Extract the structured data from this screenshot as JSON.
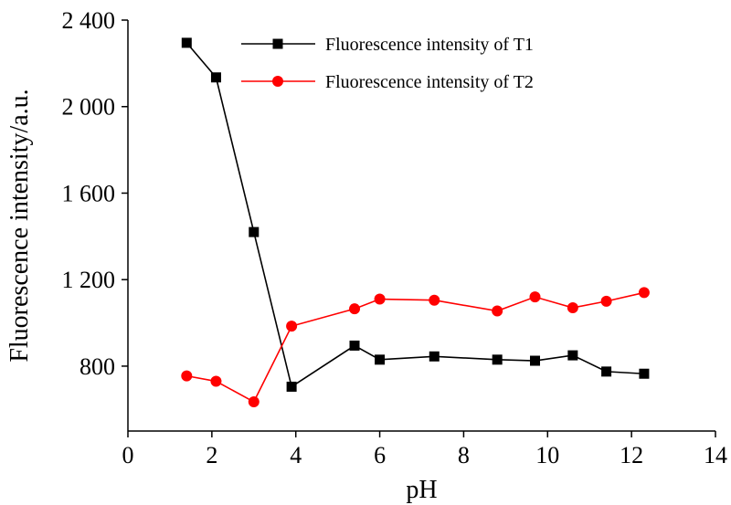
{
  "chart_data": {
    "type": "line",
    "xlabel": "pH",
    "ylabel": "Fluorescence intensity/a.u.",
    "xlim": [
      0,
      14
    ],
    "ylim": [
      500,
      2400
    ],
    "xticks": [
      0,
      2,
      4,
      6,
      8,
      10,
      12,
      14
    ],
    "xtick_labels": [
      "0",
      "2",
      "4",
      "6",
      "8",
      "10",
      "12",
      "14"
    ],
    "yticks": [
      800,
      1200,
      1600,
      2000,
      2400
    ],
    "ytick_labels": [
      "800",
      "1 200",
      "1 600",
      "2 000",
      "2 400"
    ],
    "grid": false,
    "legend_position": "top-right",
    "series": [
      {
        "name": "Fluorescence intensity of T1",
        "color": "#000000",
        "marker": "square",
        "x": [
          1.4,
          2.1,
          3.0,
          3.9,
          5.4,
          6.0,
          7.3,
          8.8,
          9.7,
          10.6,
          11.4,
          12.3
        ],
        "y": [
          2295,
          2135,
          1420,
          705,
          895,
          830,
          845,
          830,
          825,
          850,
          775,
          765
        ]
      },
      {
        "name": "Fluorescence intensity of T2",
        "color": "#ff0000",
        "marker": "circle",
        "x": [
          1.4,
          2.1,
          3.0,
          3.9,
          5.4,
          6.0,
          7.3,
          8.8,
          9.7,
          10.6,
          11.4,
          12.3
        ],
        "y": [
          755,
          730,
          635,
          985,
          1065,
          1110,
          1105,
          1055,
          1120,
          1070,
          1100,
          1140
        ]
      }
    ]
  }
}
